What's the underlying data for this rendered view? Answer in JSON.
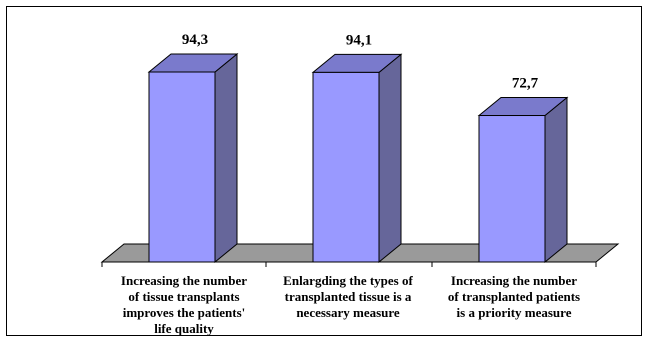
{
  "chart_data": {
    "type": "bar",
    "title": "",
    "xlabel": "",
    "ylabel": "",
    "ylim": [
      0,
      100
    ],
    "categories": [
      "Increasing the number of tissue transplants improves the patients' life quality",
      "Enlargding the types of transplanted tissue is a necessary measure",
      "Increasing the number of transplanted patients is a priority measure"
    ],
    "category_lines": [
      [
        "Increasing the number",
        "of tissue transplants",
        "improves the patients'",
        "life quality"
      ],
      [
        "Enlargding the types of",
        "transplanted tissue is a",
        "necessary measure"
      ],
      [
        "Increasing the number",
        "of transplanted patients",
        "is a priority measure"
      ]
    ],
    "values": [
      94.3,
      94.1,
      72.7
    ],
    "value_labels": [
      "94,3",
      "94,1",
      "72,7"
    ],
    "grid": false,
    "legend": "none",
    "colors": {
      "bar_front": "#9999ff",
      "bar_side": "#66669a",
      "bar_top": "#7a7acc",
      "floor": "#9a9a9a",
      "edge": "#000000"
    }
  }
}
